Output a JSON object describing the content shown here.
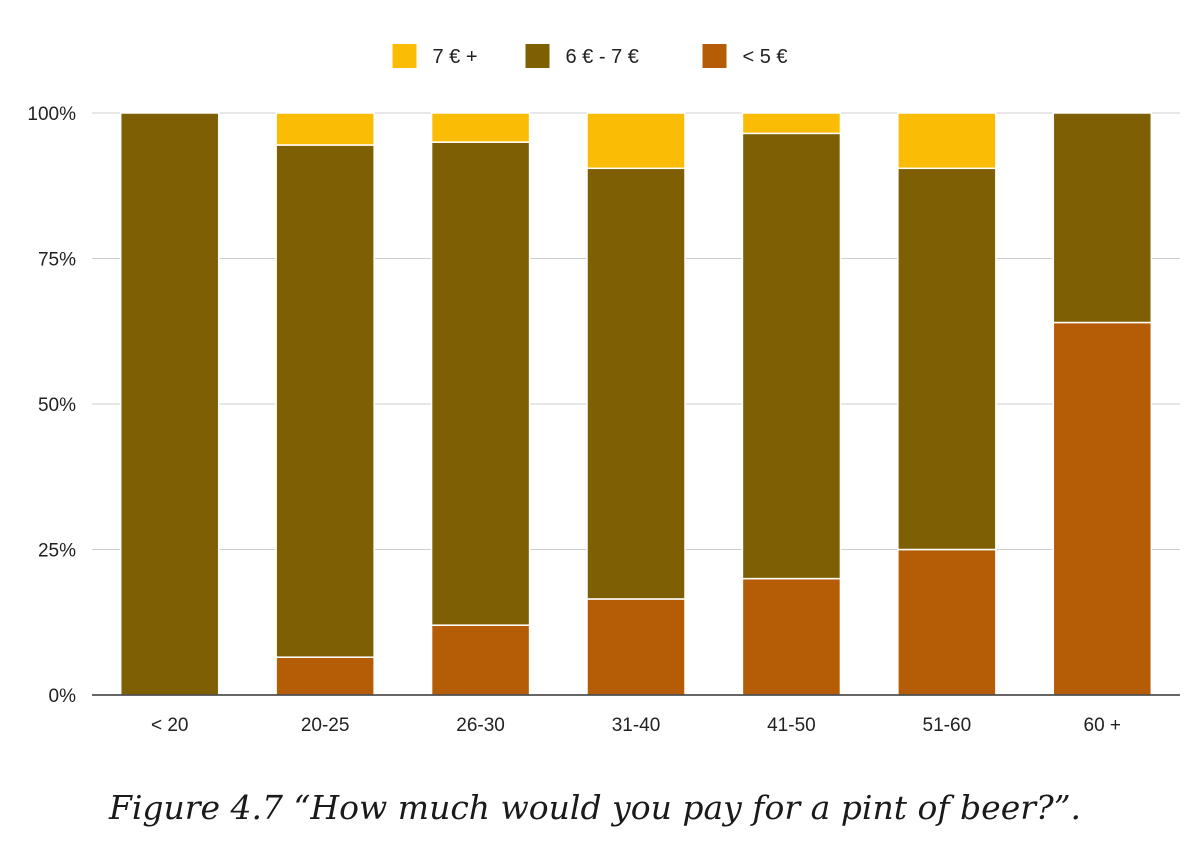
{
  "chart_data": {
    "type": "bar",
    "stacked": true,
    "normalized": true,
    "categories": [
      "< 20",
      "20-25",
      "26-30",
      "31-40",
      "41-50",
      "51-60",
      "60 +"
    ],
    "series": [
      {
        "name": "< 5 €",
        "color": "#b55d06",
        "values": [
          0,
          6.5,
          12,
          16.5,
          20,
          25,
          64
        ]
      },
      {
        "name": "6 € - 7 €",
        "color": "#7f5f04",
        "values": [
          100,
          88,
          83,
          74,
          76.5,
          65.5,
          36
        ]
      },
      {
        "name": "7 € +",
        "color": "#fbbc05",
        "values": [
          0,
          5.5,
          5,
          9.5,
          3.5,
          9.5,
          0
        ]
      }
    ],
    "legend_order": [
      "7 € +",
      "6 € - 7 €",
      "< 5 €"
    ],
    "legend_position": "top-center",
    "y_ticks": [
      "0%",
      "25%",
      "50%",
      "75%",
      "100%"
    ],
    "ylim": [
      0,
      100
    ],
    "grid": true
  },
  "caption": "Figure 4.7 “How much would you pay for a pint of beer?”."
}
